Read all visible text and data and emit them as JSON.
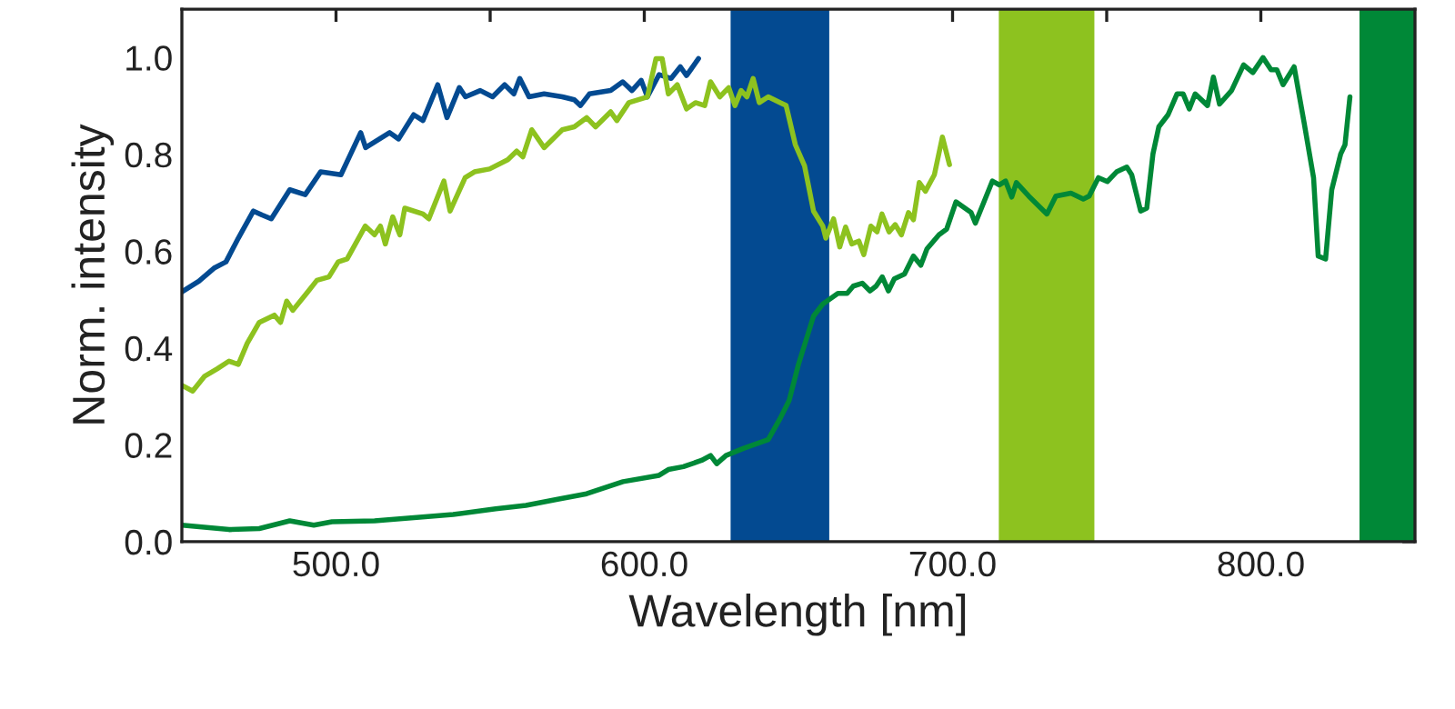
{
  "chart_data": {
    "type": "line",
    "xlabel": "Wavelength [nm]",
    "ylabel": "Norm. intensity",
    "xlim": [
      450,
      850
    ],
    "ylim": [
      0,
      1.1
    ],
    "xticks": [
      {
        "value": 500,
        "label": "500.0"
      },
      {
        "value": 550,
        "label": null
      },
      {
        "value": 600,
        "label": "600.0"
      },
      {
        "value": 650,
        "label": null
      },
      {
        "value": 700,
        "label": "700.0"
      },
      {
        "value": 750,
        "label": null
      },
      {
        "value": 800,
        "label": "800.0"
      }
    ],
    "yticks": [
      {
        "value": 0,
        "label": "0.0"
      },
      {
        "value": 0.1,
        "label": null
      },
      {
        "value": 0.2,
        "label": "0.2"
      },
      {
        "value": 0.3,
        "label": null
      },
      {
        "value": 0.4,
        "label": "0.4"
      },
      {
        "value": 0.5,
        "label": null
      },
      {
        "value": 0.6,
        "label": "0.6"
      },
      {
        "value": 0.7,
        "label": null
      },
      {
        "value": 0.8,
        "label": "0.8"
      },
      {
        "value": 0.9,
        "label": null
      },
      {
        "value": 1.0,
        "label": "1.0"
      }
    ],
    "grid": false,
    "marker": "none",
    "line_style": "solid",
    "bands": [
      {
        "axis": "x",
        "from": 628,
        "to": 660,
        "color": "#034a91"
      },
      {
        "axis": "x",
        "from": 715,
        "to": 746,
        "color": "#8dc21f"
      },
      {
        "axis": "x",
        "from": 832,
        "to": 850,
        "color": "#008837"
      }
    ],
    "series": [
      {
        "color": "#034a91",
        "x": [
          450,
          455.5,
          460.4,
          464.3,
          468.3,
          473.2,
          476,
          479,
          485,
          490,
          495,
          501.6,
          508,
          509.6,
          517.4,
          520.3,
          525.2,
          528.2,
          533,
          536,
          540,
          542,
          546.8,
          550.8,
          554.7,
          557.7,
          559.6,
          562.6,
          567.5,
          573.4,
          577.3,
          579.3,
          582.2,
          589.1,
          593,
          596,
          599,
          601,
          604.8,
          608.7,
          611.7,
          613.7,
          617.6
        ],
        "values": [
          0.516,
          0.538,
          0.565,
          0.578,
          0.627,
          0.683,
          0.675,
          0.667,
          0.727,
          0.717,
          0.764,
          0.758,
          0.845,
          0.814,
          0.845,
          0.832,
          0.882,
          0.87,
          0.944,
          0.876,
          0.938,
          0.919,
          0.932,
          0.919,
          0.944,
          0.925,
          0.957,
          0.919,
          0.925,
          0.919,
          0.913,
          0.901,
          0.925,
          0.932,
          0.95,
          0.932,
          0.953,
          0.919,
          0.965,
          0.957,
          0.981,
          0.963,
          0.998
        ]
      },
      {
        "color": "#8dc21f",
        "x": [
          450,
          453.5,
          457.4,
          461.4,
          465.3,
          468.3,
          471.2,
          475.1,
          480,
          482,
          484,
          486,
          490.8,
          493.8,
          497.7,
          500.7,
          503.6,
          509.5,
          512.5,
          514.4,
          516,
          518.4,
          520.7,
          522.3,
          528.2,
          530.1,
          535,
          537,
          541.9,
          544.9,
          549.8,
          555.7,
          558.6,
          560.6,
          563.5,
          567.5,
          573.4,
          577.3,
          581.3,
          584.2,
          589.1,
          591.1,
          595,
          601,
          603.8,
          605.8,
          607.8,
          610.7,
          613.7,
          616.6,
          619.6,
          621.5,
          624.5,
          627.4,
          629.4,
          631.4,
          633.3,
          635.3,
          637.3,
          640.2,
          644.1,
          646,
          649,
          652,
          654.9,
          657.9,
          658.9,
          661.4,
          663.4,
          665.3,
          667.3,
          669.6,
          671.2,
          673.5,
          675.5,
          677.1,
          679.4,
          681.4,
          683.4,
          685.7,
          687.3,
          689.2,
          691.2,
          694.1,
          696.7,
          699
        ],
        "values": [
          0.323,
          0.311,
          0.342,
          0.357,
          0.373,
          0.366,
          0.41,
          0.453,
          0.468,
          0.453,
          0.497,
          0.478,
          0.516,
          0.54,
          0.547,
          0.578,
          0.584,
          0.652,
          0.634,
          0.652,
          0.615,
          0.671,
          0.634,
          0.689,
          0.677,
          0.667,
          0.745,
          0.683,
          0.752,
          0.764,
          0.77,
          0.789,
          0.807,
          0.795,
          0.851,
          0.814,
          0.851,
          0.857,
          0.876,
          0.857,
          0.888,
          0.87,
          0.907,
          0.919,
          0.998,
          0.998,
          0.925,
          0.944,
          0.894,
          0.907,
          0.901,
          0.95,
          0.919,
          0.938,
          0.901,
          0.932,
          0.919,
          0.957,
          0.907,
          0.919,
          0.907,
          0.901,
          0.82,
          0.776,
          0.683,
          0.652,
          0.627,
          0.667,
          0.609,
          0.65,
          0.615,
          0.621,
          0.593,
          0.652,
          0.64,
          0.677,
          0.64,
          0.655,
          0.634,
          0.68,
          0.665,
          0.742,
          0.724,
          0.758,
          0.836,
          0.779
        ]
      },
      {
        "color": "#008837",
        "x": [
          450,
          465.3,
          475.1,
          485,
          492.8,
          498.7,
          512.5,
          526.2,
          538,
          551.8,
          561.6,
          571.5,
          581.3,
          593.1,
          604.8,
          607.8,
          612.7,
          618.6,
          621.5,
          623.5,
          626.5,
          632.3,
          640.2,
          644.1,
          647,
          650,
          654.9,
          657.9,
          662.8,
          665.8,
          667.8,
          670.7,
          673.2,
          675.2,
          677.2,
          679.2,
          681.1,
          684.4,
          687.3,
          689.7,
          691.7,
          695.6,
          698.1,
          701.1,
          706,
          707.4,
          712.9,
          715.2,
          717.2,
          719.2,
          720.7,
          724.7,
          730.6,
          733.5,
          738.4,
          742.4,
          744.3,
          747.3,
          750.2,
          753.2,
          756.5,
          758.1,
          761,
          763,
          765,
          766.9,
          769.9,
          772.8,
          774.8,
          776.8,
          778.7,
          782.7,
          784.6,
          786.6,
          790.5,
          794.4,
          797.4,
          800.7,
          803.3,
          805.2,
          807.2,
          810.8,
          814.1,
          817.1,
          818.6,
          821,
          823,
          825.9,
          827.3,
          828.9
        ],
        "values": [
          0.034,
          0.025,
          0.027,
          0.043,
          0.034,
          0.041,
          0.043,
          0.05,
          0.056,
          0.068,
          0.075,
          0.087,
          0.099,
          0.124,
          0.137,
          0.149,
          0.155,
          0.168,
          0.178,
          0.161,
          0.178,
          0.193,
          0.211,
          0.255,
          0.292,
          0.366,
          0.466,
          0.491,
          0.513,
          0.513,
          0.528,
          0.534,
          0.518,
          0.528,
          0.547,
          0.518,
          0.543,
          0.553,
          0.59,
          0.571,
          0.605,
          0.634,
          0.646,
          0.702,
          0.68,
          0.658,
          0.745,
          0.737,
          0.745,
          0.712,
          0.742,
          0.714,
          0.677,
          0.714,
          0.72,
          0.708,
          0.714,
          0.752,
          0.744,
          0.764,
          0.774,
          0.758,
          0.683,
          0.689,
          0.801,
          0.857,
          0.882,
          0.925,
          0.925,
          0.894,
          0.925,
          0.901,
          0.96,
          0.904,
          0.932,
          0.985,
          0.969,
          1.0,
          0.975,
          0.975,
          0.944,
          0.981,
          0.863,
          0.752,
          0.59,
          0.584,
          0.727,
          0.801,
          0.82,
          0.919
        ]
      }
    ]
  }
}
